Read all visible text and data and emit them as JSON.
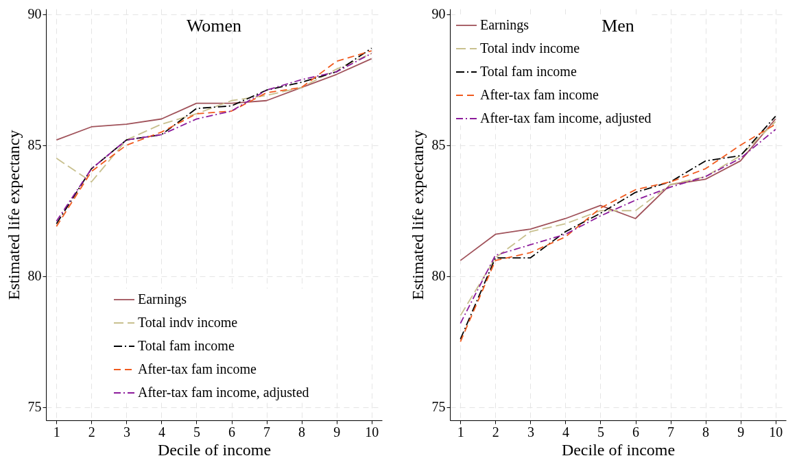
{
  "chart_data": [
    {
      "type": "line",
      "title": "Women",
      "xlabel": "Decile of income",
      "ylabel": "Estimated life expectancy",
      "x": [
        1,
        2,
        3,
        4,
        5,
        6,
        7,
        8,
        9,
        10
      ],
      "xlim": [
        0.7,
        10.3
      ],
      "xticks": [
        1,
        2,
        3,
        4,
        5,
        6,
        7,
        8,
        9,
        10
      ],
      "ylim": [
        74.5,
        90.2
      ],
      "yticks": [
        75,
        80,
        85,
        90
      ],
      "grid": true,
      "legend": "bottom",
      "series": [
        {
          "name": "Earnings",
          "color": "#a0525a",
          "line_style": "solid",
          "values": [
            85.2,
            85.7,
            85.8,
            86.0,
            86.6,
            86.6,
            86.7,
            87.2,
            87.7,
            88.3
          ]
        },
        {
          "name": "Total indv income",
          "color": "#c8c08e",
          "line_style": "dashed",
          "values": [
            84.5,
            83.6,
            85.2,
            85.8,
            86.2,
            86.7,
            86.9,
            87.2,
            87.9,
            88.5
          ]
        },
        {
          "name": "Total fam income",
          "color": "#000000",
          "line_style": "dashed",
          "values": [
            82.0,
            84.1,
            85.2,
            85.4,
            86.4,
            86.5,
            87.1,
            87.4,
            87.8,
            88.7
          ]
        },
        {
          "name": "After-tax fam income",
          "color": "#f05a1e",
          "line_style": "dashed",
          "values": [
            81.9,
            84.0,
            85.0,
            85.5,
            86.2,
            86.3,
            87.0,
            87.2,
            88.2,
            88.6
          ]
        },
        {
          "name": "After-tax fam income, adjusted",
          "color": "#8b1a9b",
          "line_style": "dashed",
          "values": [
            82.1,
            84.1,
            85.2,
            85.4,
            86.0,
            86.3,
            87.1,
            87.5,
            87.8,
            88.5
          ]
        }
      ]
    },
    {
      "type": "line",
      "title": "Men",
      "xlabel": "Decile of income",
      "ylabel": "Estimated life expectancy",
      "x": [
        1,
        2,
        3,
        4,
        5,
        6,
        7,
        8,
        9,
        10
      ],
      "xlim": [
        0.7,
        10.3
      ],
      "xticks": [
        1,
        2,
        3,
        4,
        5,
        6,
        7,
        8,
        9,
        10
      ],
      "ylim": [
        74.5,
        90.2
      ],
      "yticks": [
        75,
        80,
        85,
        90
      ],
      "grid": true,
      "legend": "top left",
      "series": [
        {
          "name": "Earnings",
          "color": "#a0525a",
          "line_style": "solid",
          "values": [
            80.6,
            81.6,
            81.8,
            82.2,
            82.7,
            82.2,
            83.5,
            83.7,
            84.4,
            86.0
          ]
        },
        {
          "name": "Total indv income",
          "color": "#c8c08e",
          "line_style": "dashed",
          "values": [
            78.5,
            80.7,
            81.7,
            82.0,
            82.5,
            82.5,
            83.5,
            83.8,
            84.6,
            85.9
          ]
        },
        {
          "name": "Total fam income",
          "color": "#000000",
          "line_style": "dashed",
          "values": [
            77.6,
            80.7,
            80.7,
            81.7,
            82.4,
            83.2,
            83.6,
            84.4,
            84.6,
            86.1
          ]
        },
        {
          "name": "After-tax fam income",
          "color": "#f05a1e",
          "line_style": "dashed",
          "values": [
            77.5,
            80.6,
            80.9,
            81.5,
            82.6,
            83.3,
            83.6,
            84.1,
            85.0,
            85.8
          ]
        },
        {
          "name": "After-tax fam income, adjusted",
          "color": "#8b1a9b",
          "line_style": "dashed",
          "values": [
            78.2,
            80.8,
            81.2,
            81.6,
            82.3,
            82.9,
            83.4,
            83.8,
            84.5,
            85.6
          ]
        }
      ]
    }
  ]
}
